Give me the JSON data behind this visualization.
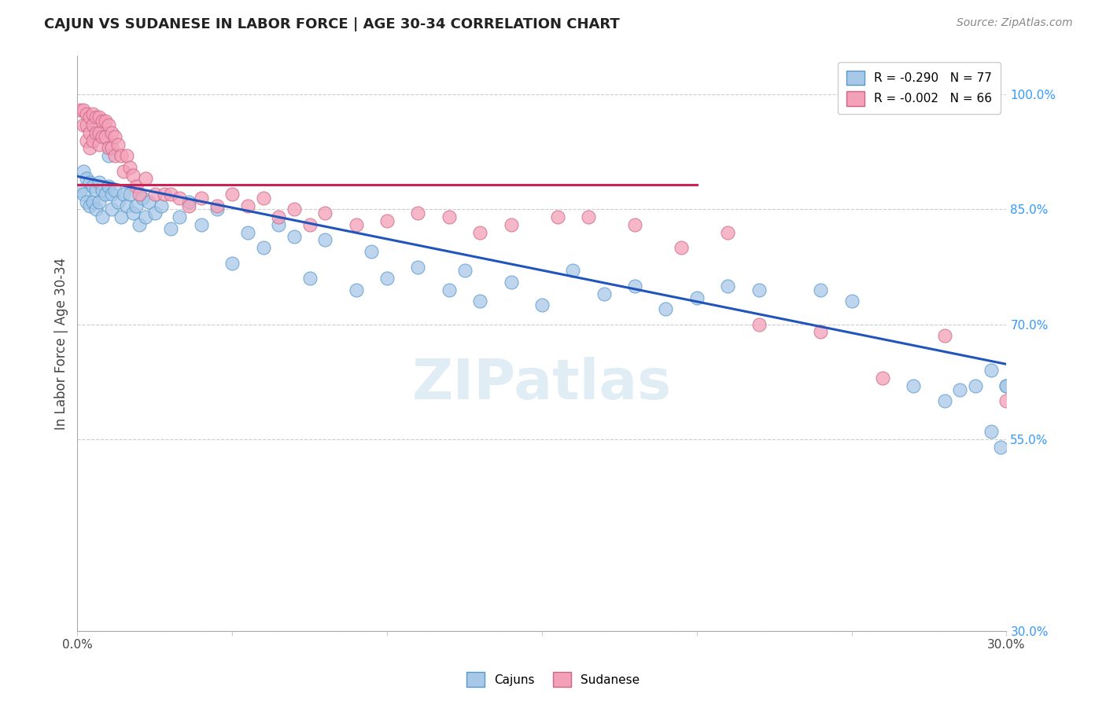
{
  "title": "CAJUN VS SUDANESE IN LABOR FORCE | AGE 30-34 CORRELATION CHART",
  "source": "Source: ZipAtlas.com",
  "ylabel": "In Labor Force | Age 30-34",
  "xlim": [
    0.0,
    0.3
  ],
  "ylim": [
    0.3,
    1.05
  ],
  "xtick_positions": [
    0.0,
    0.05,
    0.1,
    0.15,
    0.2,
    0.25,
    0.3
  ],
  "xtick_labels": [
    "0.0%",
    "",
    "",
    "",
    "",
    "",
    "30.0%"
  ],
  "yticks_right": [
    0.3,
    0.55,
    0.7,
    0.85,
    1.0
  ],
  "ytick_labels_right": [
    "30.0%",
    "55.0%",
    "70.0%",
    "85.0%",
    "100.0%"
  ],
  "legend_blue": "R = -0.290   N = 77",
  "legend_pink": "R = -0.002   N = 66",
  "cajun_color": "#A8C8E8",
  "sudanese_color": "#F4A0B8",
  "cajun_edge": "#5599CC",
  "sudanese_edge": "#CC6688",
  "watermark": "ZIPatlas",
  "blue_line_x": [
    0.0,
    0.3
  ],
  "blue_line_y": [
    0.893,
    0.648
  ],
  "pink_line_x": [
    0.0,
    0.2
  ],
  "pink_line_y": [
    0.882,
    0.882
  ],
  "cajun_x": [
    0.001,
    0.002,
    0.002,
    0.003,
    0.003,
    0.004,
    0.004,
    0.005,
    0.005,
    0.006,
    0.006,
    0.007,
    0.007,
    0.008,
    0.008,
    0.009,
    0.01,
    0.01,
    0.011,
    0.011,
    0.012,
    0.013,
    0.014,
    0.015,
    0.016,
    0.017,
    0.018,
    0.019,
    0.02,
    0.021,
    0.022,
    0.023,
    0.025,
    0.027,
    0.03,
    0.033,
    0.036,
    0.04,
    0.045,
    0.05,
    0.055,
    0.06,
    0.065,
    0.07,
    0.075,
    0.08,
    0.09,
    0.095,
    0.1,
    0.11,
    0.12,
    0.125,
    0.13,
    0.14,
    0.15,
    0.16,
    0.17,
    0.18,
    0.19,
    0.2,
    0.21,
    0.22,
    0.24,
    0.25,
    0.27,
    0.28,
    0.295,
    0.3,
    0.305,
    0.31,
    0.315,
    0.32,
    0.3,
    0.29,
    0.285,
    0.295,
    0.298
  ],
  "cajun_y": [
    0.875,
    0.9,
    0.87,
    0.89,
    0.86,
    0.885,
    0.855,
    0.88,
    0.86,
    0.875,
    0.85,
    0.885,
    0.86,
    0.875,
    0.84,
    0.87,
    0.92,
    0.88,
    0.87,
    0.85,
    0.875,
    0.86,
    0.84,
    0.87,
    0.855,
    0.87,
    0.845,
    0.855,
    0.83,
    0.865,
    0.84,
    0.86,
    0.845,
    0.855,
    0.825,
    0.84,
    0.86,
    0.83,
    0.85,
    0.78,
    0.82,
    0.8,
    0.83,
    0.815,
    0.76,
    0.81,
    0.745,
    0.795,
    0.76,
    0.775,
    0.745,
    0.77,
    0.73,
    0.755,
    0.725,
    0.77,
    0.74,
    0.75,
    0.72,
    0.735,
    0.75,
    0.745,
    0.745,
    0.73,
    0.62,
    0.6,
    0.64,
    0.62,
    0.635,
    0.56,
    0.6,
    0.58,
    0.62,
    0.62,
    0.615,
    0.56,
    0.54
  ],
  "sudanese_x": [
    0.001,
    0.002,
    0.002,
    0.003,
    0.003,
    0.003,
    0.004,
    0.004,
    0.004,
    0.005,
    0.005,
    0.005,
    0.006,
    0.006,
    0.007,
    0.007,
    0.007,
    0.008,
    0.008,
    0.009,
    0.009,
    0.01,
    0.01,
    0.011,
    0.011,
    0.012,
    0.012,
    0.013,
    0.014,
    0.015,
    0.016,
    0.017,
    0.018,
    0.019,
    0.02,
    0.022,
    0.025,
    0.028,
    0.03,
    0.033,
    0.036,
    0.04,
    0.045,
    0.05,
    0.055,
    0.06,
    0.065,
    0.07,
    0.075,
    0.08,
    0.09,
    0.1,
    0.11,
    0.12,
    0.13,
    0.14,
    0.155,
    0.165,
    0.18,
    0.195,
    0.21,
    0.22,
    0.24,
    0.26,
    0.28,
    0.3
  ],
  "sudanese_y": [
    0.98,
    0.98,
    0.96,
    0.975,
    0.96,
    0.94,
    0.97,
    0.95,
    0.93,
    0.975,
    0.96,
    0.94,
    0.97,
    0.95,
    0.97,
    0.95,
    0.935,
    0.965,
    0.945,
    0.965,
    0.945,
    0.96,
    0.93,
    0.95,
    0.93,
    0.945,
    0.92,
    0.935,
    0.92,
    0.9,
    0.92,
    0.905,
    0.895,
    0.88,
    0.87,
    0.89,
    0.87,
    0.87,
    0.87,
    0.865,
    0.855,
    0.865,
    0.855,
    0.87,
    0.855,
    0.865,
    0.84,
    0.85,
    0.83,
    0.845,
    0.83,
    0.835,
    0.845,
    0.84,
    0.82,
    0.83,
    0.84,
    0.84,
    0.83,
    0.8,
    0.82,
    0.7,
    0.69,
    0.63,
    0.685,
    0.6
  ]
}
